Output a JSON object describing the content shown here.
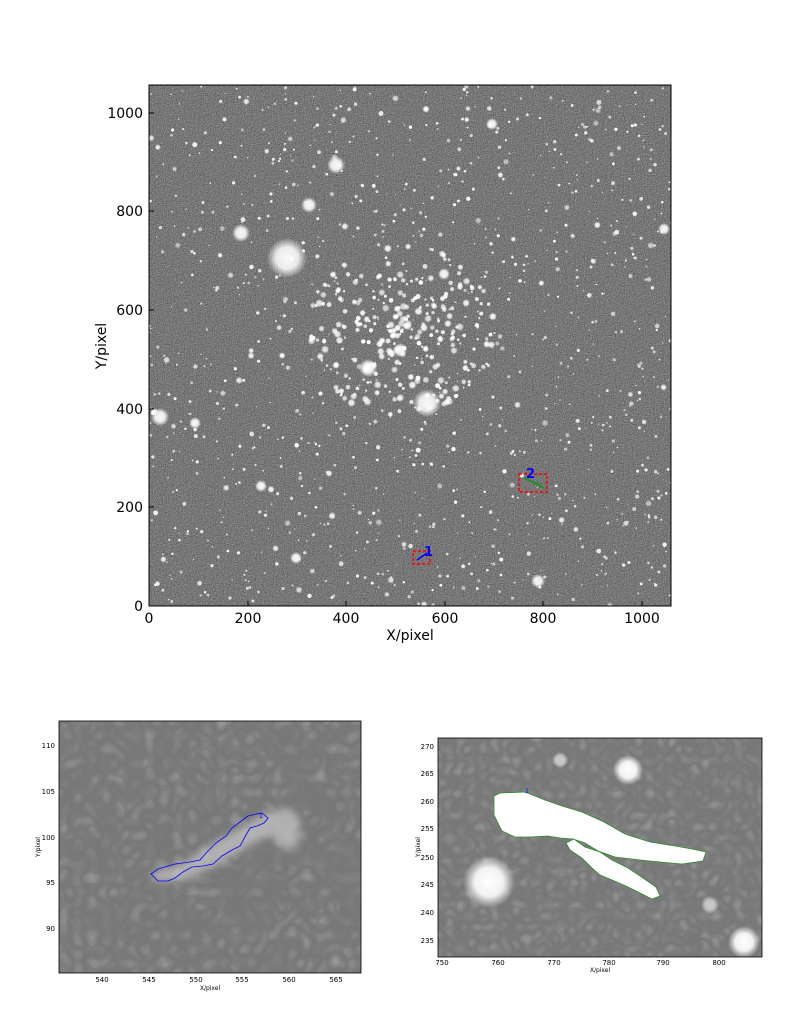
{
  "main_plot": {
    "xlabel": "X/pixel",
    "ylabel": "Y/pixel",
    "xticks": [
      "0",
      "200",
      "400",
      "600",
      "800",
      "1000"
    ],
    "yticks": [
      "0",
      "200",
      "400",
      "600",
      "800",
      "1000"
    ],
    "markers": [
      {
        "label": "1",
        "color": "#0000ff",
        "box_color": "#ff0000",
        "x": 560,
        "y": 100
      },
      {
        "label": "2",
        "color": "#0000ff",
        "box_color": "#ff0000",
        "x": 778,
        "y": 255
      }
    ]
  },
  "inset_1": {
    "xlabel": "X/pixel",
    "ylabel": "Y/pixel",
    "xticks": [
      "540",
      "545",
      "550",
      "555",
      "560",
      "565"
    ],
    "yticks": [
      "90",
      "95",
      "100",
      "105",
      "110"
    ],
    "label": "1",
    "contour_color": "#0000ff"
  },
  "inset_2": {
    "xlabel": "X/pixel",
    "ylabel": "Y/pixel",
    "xticks": [
      "750",
      "760",
      "770",
      "780",
      "790",
      "800"
    ],
    "yticks": [
      "235",
      "240",
      "245",
      "250",
      "255",
      "260",
      "265",
      "270"
    ],
    "label": "2",
    "contour_color": "#2e8b2e"
  }
}
